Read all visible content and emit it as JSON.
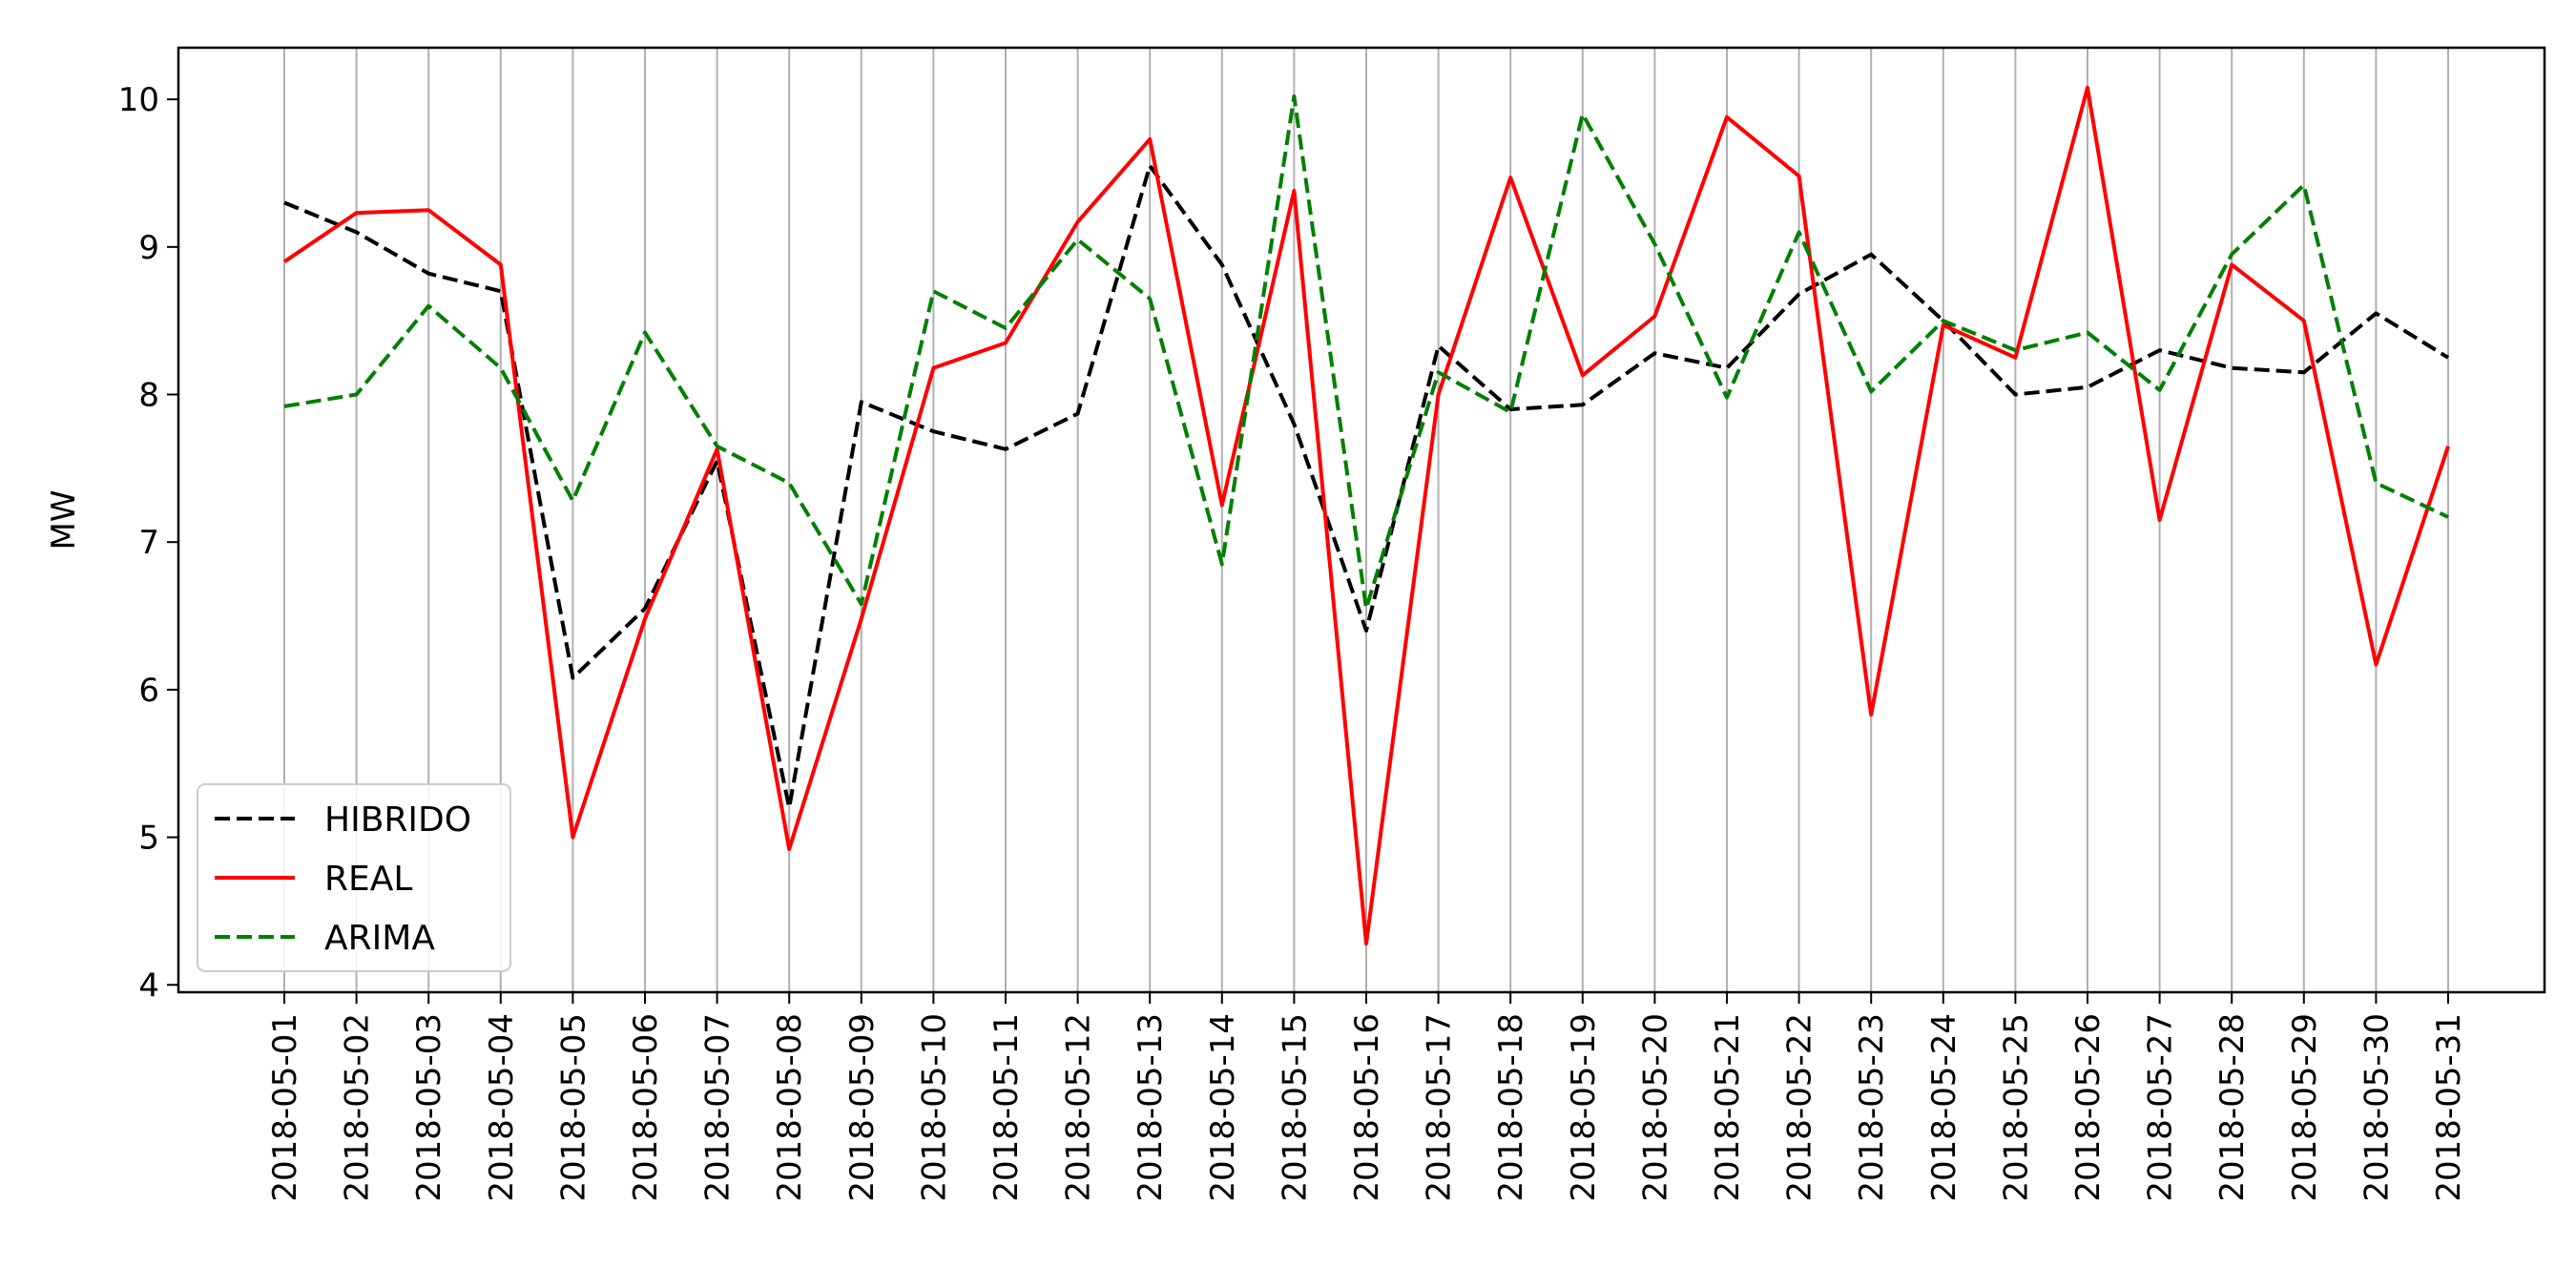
{
  "chart_data": {
    "type": "line",
    "title": "",
    "xlabel": "",
    "ylabel": "MW",
    "ylim": [
      3.95,
      10.35
    ],
    "yticks": [
      4,
      5,
      6,
      7,
      8,
      9,
      10
    ],
    "grid": "vertical",
    "legend_position": "lower-left",
    "categories": [
      "2018-05-01",
      "2018-05-02",
      "2018-05-03",
      "2018-05-04",
      "2018-05-05",
      "2018-05-06",
      "2018-05-07",
      "2018-05-08",
      "2018-05-09",
      "2018-05-10",
      "2018-05-11",
      "2018-05-12",
      "2018-05-13",
      "2018-05-14",
      "2018-05-15",
      "2018-05-16",
      "2018-05-17",
      "2018-05-18",
      "2018-05-19",
      "2018-05-20",
      "2018-05-21",
      "2018-05-22",
      "2018-05-23",
      "2018-05-24",
      "2018-05-25",
      "2018-05-26",
      "2018-05-27",
      "2018-05-28",
      "2018-05-29",
      "2018-05-30",
      "2018-05-31"
    ],
    "series": [
      {
        "name": "HIBRIDO",
        "color": "#000000",
        "style": "dashed",
        "values": [
          9.3,
          9.1,
          8.82,
          8.7,
          6.08,
          6.55,
          7.55,
          5.2,
          7.95,
          7.75,
          7.63,
          7.87,
          9.55,
          8.88,
          7.8,
          6.4,
          8.33,
          7.9,
          7.93,
          8.28,
          8.18,
          8.68,
          8.95,
          8.5,
          8.0,
          8.05,
          8.3,
          8.18,
          8.15,
          8.55,
          8.25
        ]
      },
      {
        "name": "REAL",
        "color": "#ff0000",
        "style": "solid",
        "values": [
          8.9,
          9.23,
          9.25,
          8.88,
          5.0,
          6.48,
          7.63,
          4.92,
          6.48,
          8.18,
          8.35,
          9.17,
          9.73,
          7.25,
          9.38,
          4.28,
          8.0,
          9.47,
          8.13,
          8.53,
          9.88,
          9.48,
          5.83,
          8.47,
          8.25,
          10.08,
          7.15,
          8.88,
          8.5,
          6.17,
          7.65
        ]
      },
      {
        "name": "ARIMA",
        "color": "#008000",
        "style": "dashed",
        "values": [
          7.92,
          8.0,
          8.6,
          8.18,
          7.28,
          8.42,
          7.65,
          7.4,
          6.58,
          8.7,
          8.45,
          9.05,
          8.65,
          6.85,
          10.02,
          6.55,
          8.15,
          7.88,
          9.9,
          9.02,
          7.98,
          9.1,
          8.02,
          8.5,
          8.3,
          8.42,
          8.03,
          8.95,
          9.42,
          7.4,
          7.17
        ]
      }
    ]
  }
}
